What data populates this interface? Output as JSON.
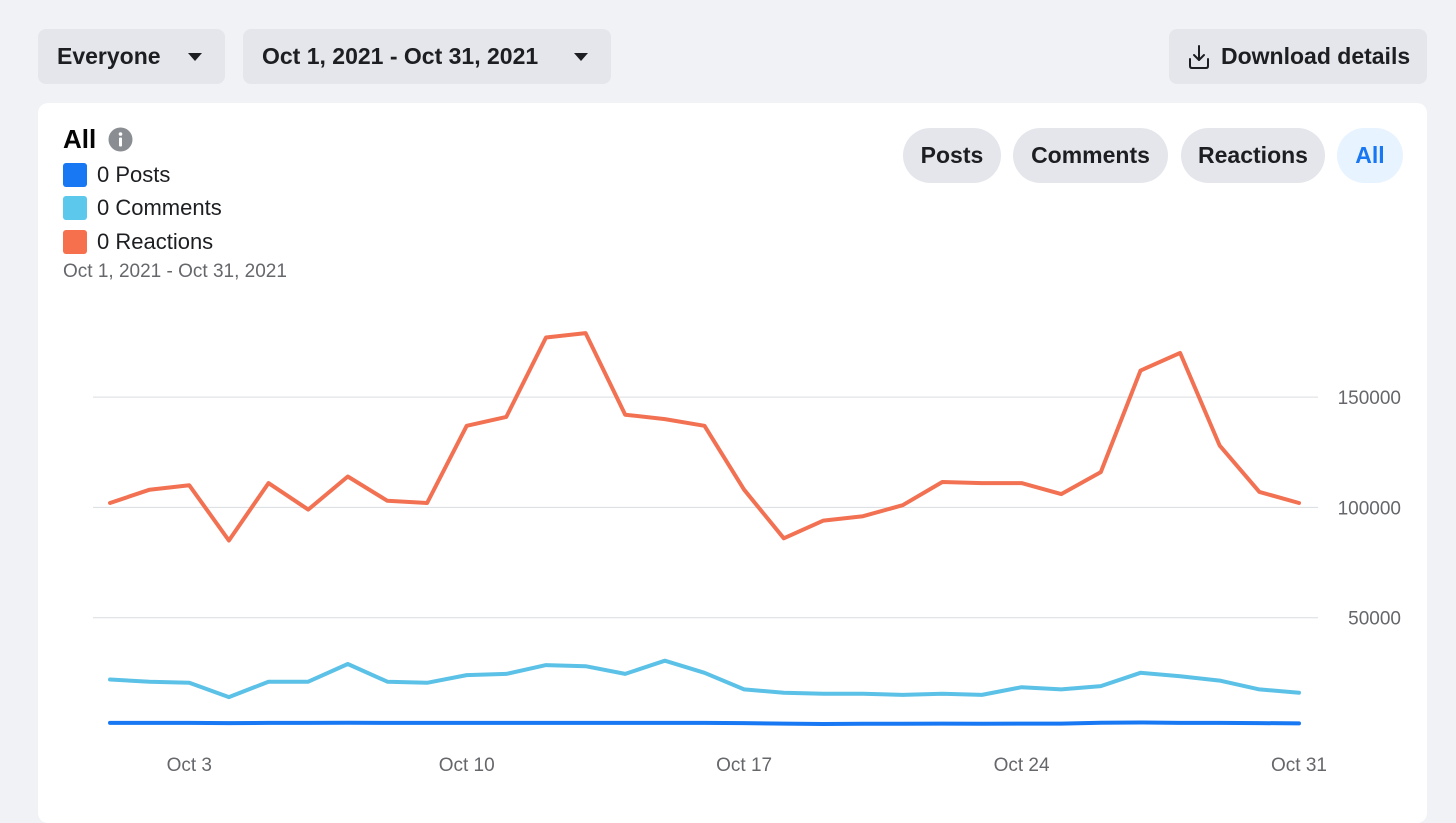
{
  "filters": {
    "audience": "Everyone",
    "date_range": "Oct 1, 2021 - Oct 31, 2021",
    "download_label": "Download details"
  },
  "card": {
    "title": "All",
    "legend": [
      {
        "label": "0 Posts",
        "color": "#1877f2"
      },
      {
        "label": "0 Comments",
        "color": "#5bc8ec"
      },
      {
        "label": "0 Reactions",
        "color": "#f7704d"
      }
    ],
    "date_caption": "Oct 1, 2021 - Oct 31, 2021",
    "tabs": [
      {
        "label": "Posts",
        "active": false
      },
      {
        "label": "Comments",
        "active": false
      },
      {
        "label": "Reactions",
        "active": false
      },
      {
        "label": "All",
        "active": true
      }
    ]
  },
  "chart_data": {
    "type": "line",
    "x": [
      1,
      2,
      3,
      4,
      5,
      6,
      7,
      8,
      9,
      10,
      11,
      12,
      13,
      14,
      15,
      16,
      17,
      18,
      19,
      20,
      21,
      22,
      23,
      24,
      25,
      26,
      27,
      28,
      29,
      30,
      31
    ],
    "xlabel": "",
    "ylabel": "",
    "ylim": [
      0,
      180000
    ],
    "yticks": [
      50000,
      100000,
      150000
    ],
    "ytick_labels": [
      "50000",
      "100000",
      "150000"
    ],
    "xticks": [
      3,
      10,
      17,
      24,
      31
    ],
    "xtick_labels": [
      "Oct 3",
      "Oct 10",
      "Oct 17",
      "Oct 24",
      "Oct 31"
    ],
    "grid": true,
    "y_axis_side": "right",
    "series": [
      {
        "name": "Reactions",
        "color": "#f27152",
        "values": [
          102000,
          108000,
          110000,
          85000,
          111000,
          99000,
          114000,
          103000,
          102000,
          137000,
          141000,
          177000,
          179000,
          142000,
          140000,
          137000,
          108000,
          86000,
          94000,
          96000,
          101000,
          111500,
          111000,
          111000,
          106000,
          116000,
          162000,
          170000,
          128000,
          107000,
          102000
        ]
      },
      {
        "name": "Comments",
        "color": "#5cc1e6",
        "values": [
          22000,
          21000,
          20500,
          14000,
          21000,
          21000,
          29000,
          21000,
          20500,
          24000,
          24500,
          28500,
          28000,
          24500,
          30500,
          25000,
          17500,
          16000,
          15500,
          15500,
          15000,
          15500,
          15000,
          18500,
          17500,
          19000,
          25000,
          23500,
          21500,
          17500,
          16000
        ]
      },
      {
        "name": "Posts",
        "color": "#1877f2",
        "values": [
          2300,
          2300,
          2300,
          2200,
          2300,
          2300,
          2400,
          2300,
          2300,
          2300,
          2300,
          2300,
          2300,
          2300,
          2300,
          2300,
          2200,
          2000,
          1800,
          1900,
          1900,
          2000,
          1900,
          2000,
          2000,
          2400,
          2500,
          2300,
          2300,
          2200,
          2100
        ]
      }
    ]
  }
}
